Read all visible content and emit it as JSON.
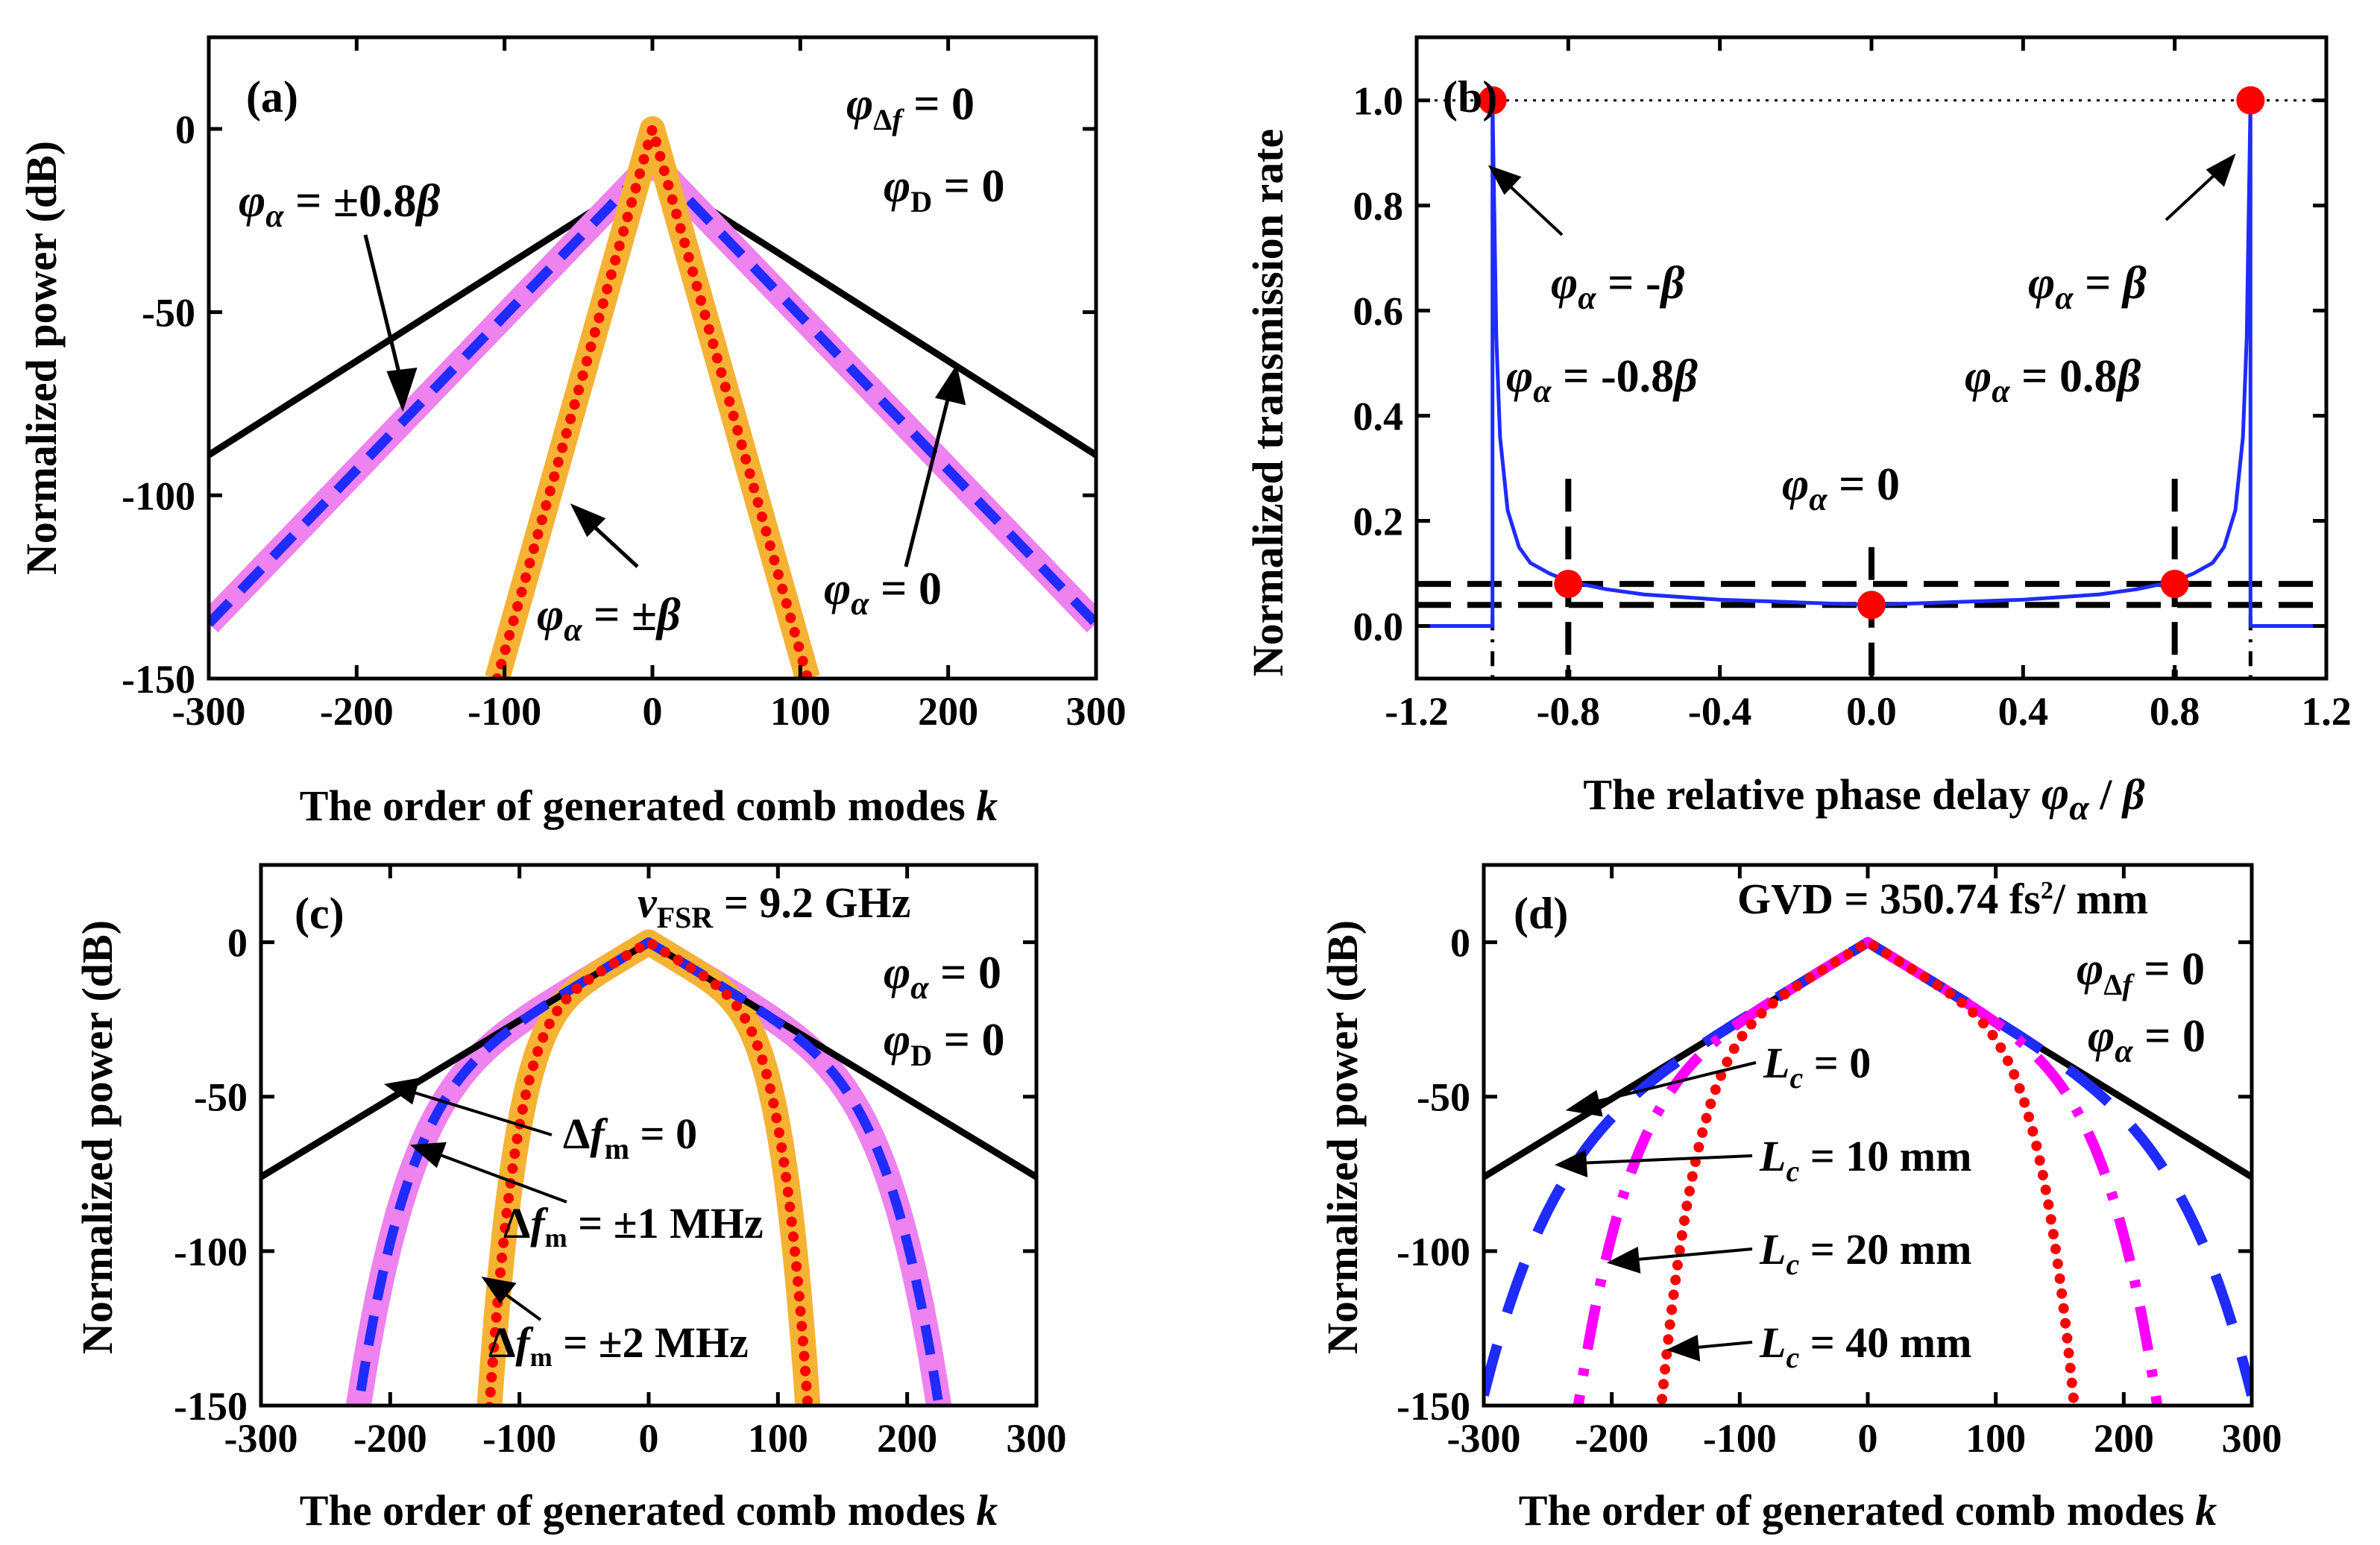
{
  "colors": {
    "black": "#000000",
    "blue": "#1f2bff",
    "violet": "#ee82ee",
    "magenta": "#ff00ff",
    "orange": "#f5b233",
    "red": "#ff0000"
  },
  "chart_data": [
    {
      "id": "a",
      "type": "line",
      "panel_label": "(a)",
      "xlabel": "The order of generated comb modes k",
      "ylabel": "Normalized power (dB)",
      "xlim": [
        -300,
        300
      ],
      "ylim": [
        -150,
        25
      ],
      "xticks": [
        -300,
        -200,
        -100,
        0,
        100,
        200,
        300
      ],
      "yticks": [
        0,
        -50,
        -100,
        -150
      ],
      "annotations": [
        "φΔf = 0",
        "φD = 0",
        "φα = ±0.8β",
        "φα = ±β",
        "φα = 0"
      ],
      "series": [
        {
          "name": "φα = 0",
          "color": "#000000",
          "style": "solid",
          "x": [
            -300,
            0,
            300
          ],
          "y": [
            -89,
            -12,
            -89
          ]
        },
        {
          "name": "φα = ±0.8β (wide)",
          "color": "#ee82ee",
          "style": "wide",
          "x": [
            -300,
            0,
            300
          ],
          "y": [
            -135,
            -9,
            -135
          ]
        },
        {
          "name": "φα = ±0.8β",
          "color": "#1f2bff",
          "style": "dash",
          "x": [
            -300,
            0,
            300
          ],
          "y": [
            -135,
            -9,
            -135
          ]
        },
        {
          "name": "φα = ±β (wide)",
          "color": "#f5b233",
          "style": "wide",
          "x": [
            -105,
            0,
            105
          ],
          "y": [
            -150,
            0,
            -150
          ]
        },
        {
          "name": "φα = ±β",
          "color": "#ff0000",
          "style": "dot",
          "x": [
            -105,
            0,
            105
          ],
          "y": [
            -150,
            0,
            -150
          ]
        }
      ]
    },
    {
      "id": "b",
      "type": "line",
      "panel_label": "(b)",
      "xlabel": "The relative phase delay φα / β",
      "ylabel": "Normalized transmission rate",
      "xlim": [
        -1.2,
        1.2
      ],
      "ylim": [
        -0.1,
        1.12
      ],
      "xticks": [
        -1.2,
        -0.8,
        -0.4,
        0.0,
        0.4,
        0.8,
        1.2
      ],
      "yticks": [
        0.0,
        0.2,
        0.4,
        0.6,
        0.8,
        1.0
      ],
      "annotations": [
        "φα = -β",
        "φα = β",
        "φα = -0.8β",
        "φα = 0.8β",
        "φα = 0"
      ],
      "series": [
        {
          "name": "transmission",
          "color": "#1f2bff",
          "style": "solid",
          "x": [
            -1.2,
            -1.0,
            -1.0,
            -0.99,
            -0.98,
            -0.96,
            -0.93,
            -0.9,
            -0.85,
            -0.8,
            -0.7,
            -0.6,
            -0.4,
            -0.2,
            0.0,
            0.2,
            0.4,
            0.6,
            0.7,
            0.8,
            0.85,
            0.9,
            0.93,
            0.96,
            0.98,
            0.99,
            1.0,
            1.0,
            1.2
          ],
          "y": [
            0.0,
            0.0,
            1.0,
            0.55,
            0.36,
            0.22,
            0.15,
            0.12,
            0.1,
            0.085,
            0.07,
            0.06,
            0.05,
            0.045,
            0.04,
            0.045,
            0.05,
            0.06,
            0.07,
            0.085,
            0.1,
            0.12,
            0.15,
            0.22,
            0.36,
            0.55,
            1.0,
            0.0,
            0.0
          ]
        },
        {
          "name": "markers",
          "color": "#ff0000",
          "style": "marker",
          "x": [
            -1.0,
            1.0,
            -0.8,
            0.8,
            0.0
          ],
          "y": [
            1.0,
            1.0,
            0.08,
            0.08,
            0.04
          ]
        }
      ],
      "reference_lines": {
        "dotted_y": 1.0,
        "dashed_y": [
          0.08,
          0.04
        ],
        "dashed_x": [
          -0.8,
          0.0,
          0.8
        ],
        "dashdot_x": [
          -1.0,
          1.0
        ]
      }
    },
    {
      "id": "c",
      "type": "line",
      "panel_label": "(c)",
      "xlabel": "The order of generated comb modes k",
      "ylabel": "Normalized power (dB)",
      "xlim": [
        -300,
        300
      ],
      "ylim": [
        -150,
        25
      ],
      "xticks": [
        -300,
        -200,
        -100,
        0,
        100,
        200,
        300
      ],
      "yticks": [
        0,
        -50,
        -100,
        -150
      ],
      "annotations": [
        "vFSR = 9.2 GHz",
        "φα = 0",
        "φD = 0",
        "Δfm = 0",
        "Δfm = ±1 MHz",
        "Δfm = ±2 MHz"
      ],
      "series": [
        {
          "name": "Δfm = 0",
          "color": "#000000",
          "style": "solid",
          "x": [
            -300,
            0,
            300
          ],
          "y": [
            -76,
            0,
            -76
          ]
        },
        {
          "name": "Δfm = ±1 MHz",
          "color": "#1f2bff",
          "style": "dash",
          "k0": 243,
          "slope": 0.253
        },
        {
          "name": "Δfm = ±2 MHz",
          "color": "#ff0000",
          "style": "dot",
          "k0": 128,
          "slope": 0.253
        }
      ]
    },
    {
      "id": "d",
      "type": "line",
      "panel_label": "(d)",
      "xlabel": "The order of generated comb modes k",
      "ylabel": "Normalized power (dB)",
      "xlim": [
        -300,
        300
      ],
      "ylim": [
        -150,
        25
      ],
      "xticks": [
        -300,
        -200,
        -100,
        0,
        100,
        200,
        300
      ],
      "yticks": [
        0,
        -50,
        -100,
        -150
      ],
      "annotations": [
        "GVD = 350.74 fs2/ mm",
        "φΔf = 0",
        "φα = 0",
        "Lc = 0",
        "Lc = 10 mm",
        "Lc = 20 mm",
        "Lc = 40 mm"
      ],
      "series": [
        {
          "name": "Lc = 0",
          "color": "#000000",
          "style": "solid",
          "x": [
            -300,
            0,
            300
          ],
          "y": [
            -76,
            0,
            -76
          ]
        },
        {
          "name": "Lc = 10 mm",
          "color": "#1f2bff",
          "style": "longdash",
          "k0": 340,
          "slope": 0.253
        },
        {
          "name": "Lc = 20 mm",
          "color": "#ff00ff",
          "style": "dashdot",
          "k0": 245,
          "slope": 0.253
        },
        {
          "name": "Lc = 40 mm",
          "color": "#ff0000",
          "style": "dot",
          "k0": 170,
          "slope": 0.253
        }
      ]
    }
  ]
}
